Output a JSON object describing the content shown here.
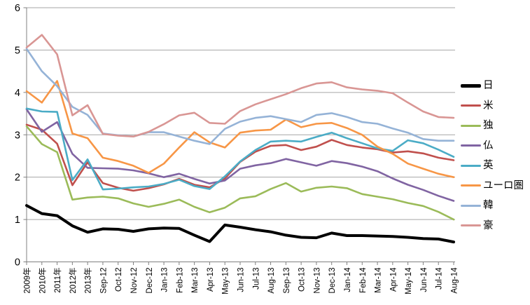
{
  "chart_data": {
    "type": "line",
    "title": "",
    "xlabel": "",
    "ylabel": "",
    "ylim": [
      0,
      6
    ],
    "yticks": [
      0,
      1,
      2,
      3,
      4,
      5,
      6
    ],
    "grid": true,
    "legend_position": "right",
    "grid_color": "#A6A6A6",
    "axis_color": "#808080",
    "background": "#FFFFFF",
    "categories": [
      "2009年",
      "2010年",
      "2011年",
      "2012年",
      "2013年",
      "Sep-12",
      "Oct-12",
      "Nov-12",
      "Dec-12",
      "Jan-13",
      "Feb-13",
      "Mar-13",
      "Apr-13",
      "May-13",
      "Jun-13",
      "Jul-13",
      "Aug-13",
      "Sep-13",
      "Oct-13",
      "Nov-13",
      "Dec-13",
      "Jan-14",
      "Feb-14",
      "Mar-14",
      "Apr-14",
      "May-14",
      "Jun-14",
      "Jul-14",
      "Aug-14"
    ],
    "series": [
      {
        "name": "日",
        "color": "#000000",
        "width": 4,
        "values": [
          1.33,
          1.14,
          1.09,
          0.85,
          0.7,
          0.78,
          0.77,
          0.72,
          0.78,
          0.8,
          0.79,
          0.63,
          0.48,
          0.87,
          0.82,
          0.76,
          0.71,
          0.63,
          0.58,
          0.57,
          0.68,
          0.62,
          0.62,
          0.61,
          0.6,
          0.58,
          0.55,
          0.54,
          0.47
        ]
      },
      {
        "name": "米",
        "color": "#C0504D",
        "width": 2.6,
        "values": [
          3.24,
          3.12,
          2.79,
          1.81,
          2.35,
          1.86,
          1.75,
          1.68,
          1.74,
          1.83,
          1.96,
          1.82,
          1.76,
          1.97,
          2.36,
          2.6,
          2.74,
          2.76,
          2.64,
          2.72,
          2.88,
          2.76,
          2.7,
          2.66,
          2.58,
          2.61,
          2.56,
          2.46,
          2.4
        ]
      },
      {
        "name": "独",
        "color": "#9BBB59",
        "width": 2.6,
        "values": [
          3.2,
          2.78,
          2.59,
          1.47,
          1.52,
          1.54,
          1.5,
          1.38,
          1.3,
          1.37,
          1.47,
          1.3,
          1.17,
          1.28,
          1.5,
          1.55,
          1.72,
          1.86,
          1.66,
          1.75,
          1.78,
          1.74,
          1.6,
          1.54,
          1.48,
          1.39,
          1.32,
          1.18,
          1.0
        ]
      },
      {
        "name": "仏",
        "color": "#8064A2",
        "width": 2.6,
        "values": [
          3.6,
          3.07,
          3.3,
          2.55,
          2.22,
          2.21,
          2.2,
          2.16,
          2.09,
          2.0,
          2.08,
          1.96,
          1.85,
          1.92,
          2.2,
          2.28,
          2.33,
          2.43,
          2.35,
          2.27,
          2.38,
          2.33,
          2.25,
          2.14,
          1.97,
          1.82,
          1.7,
          1.56,
          1.44
        ]
      },
      {
        "name": "英",
        "color": "#4BACC6",
        "width": 2.6,
        "values": [
          3.62,
          3.55,
          3.54,
          1.93,
          2.42,
          1.71,
          1.73,
          1.76,
          1.78,
          1.84,
          1.94,
          1.79,
          1.72,
          2.02,
          2.37,
          2.64,
          2.84,
          2.86,
          2.84,
          2.95,
          3.05,
          2.92,
          2.8,
          2.68,
          2.62,
          2.87,
          2.8,
          2.65,
          2.48
        ]
      },
      {
        "name": "ユーロ圏",
        "color": "#F79646",
        "width": 2.6,
        "values": [
          4.03,
          3.76,
          4.27,
          3.03,
          2.92,
          2.46,
          2.38,
          2.27,
          2.1,
          2.32,
          2.7,
          3.06,
          2.82,
          2.7,
          3.05,
          3.1,
          3.12,
          3.36,
          3.18,
          3.26,
          3.28,
          3.16,
          3.0,
          2.72,
          2.55,
          2.32,
          2.2,
          2.08,
          2.0
        ]
      },
      {
        "name": "韓",
        "color": "#95B3D7",
        "width": 2.6,
        "values": [
          5.03,
          4.5,
          4.15,
          3.66,
          3.47,
          3.03,
          2.99,
          2.96,
          3.06,
          3.06,
          2.96,
          2.86,
          2.78,
          3.14,
          3.31,
          3.4,
          3.44,
          3.37,
          3.3,
          3.47,
          3.51,
          3.42,
          3.3,
          3.26,
          3.15,
          3.05,
          2.9,
          2.86,
          2.86
        ]
      },
      {
        "name": "豪",
        "color": "#D99694",
        "width": 2.6,
        "values": [
          5.06,
          5.36,
          4.9,
          3.46,
          3.7,
          3.02,
          2.98,
          2.96,
          3.07,
          3.25,
          3.46,
          3.52,
          3.28,
          3.26,
          3.56,
          3.72,
          3.84,
          3.96,
          4.1,
          4.21,
          4.24,
          4.12,
          4.07,
          4.04,
          3.98,
          3.76,
          3.55,
          3.42,
          3.4
        ]
      }
    ]
  }
}
